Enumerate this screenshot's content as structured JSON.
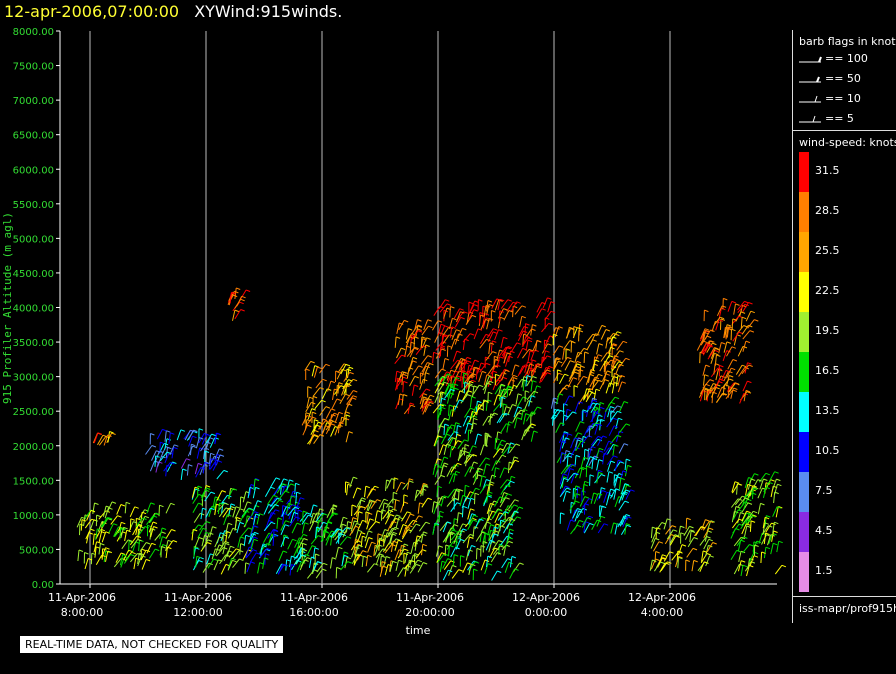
{
  "header": {
    "date": "12-apr-2006,07:00:00",
    "name": "XYWind:915winds."
  },
  "chart_data": {
    "type": "scatter",
    "xlabel": "time",
    "ylabel": "915 Profiler Altitude (m agl)",
    "ylim": [
      0,
      8000
    ],
    "yticks": [
      "0.00",
      "500.00",
      "1000.00",
      "1500.00",
      "2000.00",
      "2500.00",
      "3000.00",
      "3500.00",
      "4000.00",
      "4500.00",
      "5000.00",
      "5500.00",
      "6000.00",
      "6500.00",
      "7000.00",
      "7500.00",
      "8000.00"
    ],
    "xticks": [
      {
        "date": "11-Apr-2006",
        "time": "8:00:00"
      },
      {
        "date": "11-Apr-2006",
        "time": "12:00:00"
      },
      {
        "date": "11-Apr-2006",
        "time": "16:00:00"
      },
      {
        "date": "11-Apr-2006",
        "time": "20:00:00"
      },
      {
        "date": "12-Apr-2006",
        "time": "0:00:00"
      },
      {
        "date": "12-Apr-2006",
        "time": "4:00:00"
      }
    ],
    "xlim_hours": [
      7,
      25.7
    ],
    "grid": "vertical at x ticks",
    "series_blocks": [
      {
        "t0": 7.5,
        "t1": 10.7,
        "hmin": 200,
        "hmax": 1050,
        "core": 20
      },
      {
        "t0": 9.9,
        "t1": 12.4,
        "hmin": 1500,
        "hmax": 2100,
        "core": 9
      },
      {
        "t0": 11.5,
        "t1": 13.4,
        "hmin": 100,
        "hmax": 1300,
        "core": 18
      },
      {
        "t0": 13.3,
        "t1": 15.2,
        "hmin": 100,
        "hmax": 1400,
        "core": 13
      },
      {
        "t0": 15.0,
        "t1": 16.8,
        "hmin": 50,
        "hmax": 1000,
        "core": 17
      },
      {
        "t0": 16.8,
        "t1": 19.5,
        "hmin": 100,
        "hmax": 1400,
        "core": 22
      },
      {
        "t0": 15.3,
        "t1": 16.9,
        "hmin": 2000,
        "hmax": 3100,
        "core": 25
      },
      {
        "t0": 18.5,
        "t1": 19.6,
        "hmin": 2400,
        "hmax": 3800,
        "core": 28
      },
      {
        "t0": 19.8,
        "t1": 23.8,
        "hmin": 2800,
        "hmax": 4000,
        "core": 31
      },
      {
        "t0": 19.8,
        "t1": 23.3,
        "hmin": 2000,
        "hmax": 2900,
        "core": 18
      },
      {
        "t0": 19.8,
        "t1": 22.6,
        "hmin": 50,
        "hmax": 2000,
        "core": 18
      },
      {
        "t0": 23.9,
        "t1": 26.3,
        "hmin": 2600,
        "hmax": 3600,
        "core": 26
      },
      {
        "t0": 23.9,
        "t1": 26.3,
        "hmin": 1700,
        "hmax": 2600,
        "core": 12
      },
      {
        "t0": 24.2,
        "t1": 26.5,
        "hmin": 700,
        "hmax": 1700,
        "core": 14
      },
      {
        "t0": 27.3,
        "t1": 29.3,
        "hmin": 150,
        "hmax": 800,
        "core": 22
      },
      {
        "t0": 29.0,
        "t1": 30.7,
        "hmin": 2600,
        "hmax": 4000,
        "core": 28
      },
      {
        "t0": 30.1,
        "t1": 31.7,
        "hmin": 100,
        "hmax": 1500,
        "core": 19
      },
      {
        "t0": 12.7,
        "t1": 13.2,
        "hmin": 3800,
        "hmax": 4150,
        "core": 30
      },
      {
        "t0": 8.1,
        "t1": 8.7,
        "hmin": 2000,
        "hmax": 2050,
        "core": 27
      },
      {
        "t0": 28.9,
        "t1": 29.2,
        "hmin": 3300,
        "hmax": 3550,
        "core": 31
      }
    ]
  },
  "legend": {
    "barb_title": "barb flags in knots",
    "barbs": [
      "== 100",
      "== 50",
      "== 10",
      "== 5"
    ],
    "speed_title": "wind-speed: knots",
    "colorbar": [
      {
        "label": "31.5",
        "color": "#ff0000"
      },
      {
        "label": "28.5",
        "color": "#ff7f00"
      },
      {
        "label": "25.5",
        "color": "#ffa500"
      },
      {
        "label": "22.5",
        "color": "#ffff00"
      },
      {
        "label": "19.5",
        "color": "#a0f030"
      },
      {
        "label": "16.5",
        "color": "#00e000"
      },
      {
        "label": "13.5",
        "color": "#00ffff"
      },
      {
        "label": "10.5",
        "color": "#0000ff"
      },
      {
        "label": "7.5",
        "color": "#5a8cf0"
      },
      {
        "label": "4.5",
        "color": "#8a2be2"
      },
      {
        "label": "1.5",
        "color": "#e68ce6"
      }
    ],
    "source_id": "iss-mapr/prof915h"
  },
  "notice": "REAL-TIME DATA, NOT CHECKED FOR QUALITY"
}
